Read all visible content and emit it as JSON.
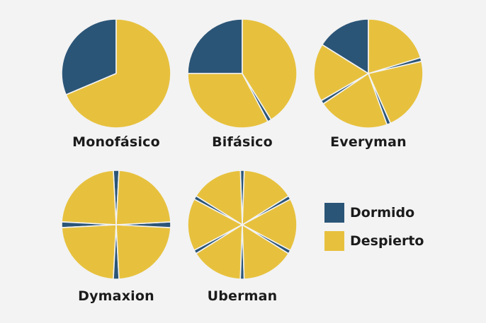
{
  "chart_data": {
    "type": "pie",
    "colors": {
      "asleep": "#2b5577",
      "awake": "#e7c13e",
      "gap": "#f3f3f3"
    },
    "legend": [
      {
        "key": "asleep",
        "label": "Dormido"
      },
      {
        "key": "awake",
        "label": "Despierto"
      }
    ],
    "charts": [
      {
        "title": "Monofásico",
        "segments": [
          {
            "state": "asleep",
            "start_deg": 90,
            "end_deg": 203
          },
          {
            "state": "awake",
            "start_deg": 203,
            "end_deg": 450
          }
        ]
      },
      {
        "title": "Bifásico",
        "segments": [
          {
            "state": "asleep",
            "start_deg": 90,
            "end_deg": 180
          },
          {
            "state": "awake",
            "start_deg": 180,
            "end_deg": 298
          },
          {
            "state": "asleep",
            "start_deg": 298,
            "end_deg": 302
          },
          {
            "state": "awake",
            "start_deg": 302,
            "end_deg": 450
          }
        ]
      },
      {
        "title": "Everyman",
        "segments": [
          {
            "state": "asleep",
            "start_deg": 90,
            "end_deg": 148
          },
          {
            "state": "awake",
            "start_deg": 148,
            "end_deg": 210
          },
          {
            "state": "asleep",
            "start_deg": 210,
            "end_deg": 214
          },
          {
            "state": "awake",
            "start_deg": 214,
            "end_deg": 290
          },
          {
            "state": "asleep",
            "start_deg": 290,
            "end_deg": 294
          },
          {
            "state": "awake",
            "start_deg": 294,
            "end_deg": 13
          },
          {
            "state": "asleep",
            "start_deg": 13,
            "end_deg": 17
          },
          {
            "state": "awake",
            "start_deg": 17,
            "end_deg": 90
          }
        ]
      },
      {
        "title": "Dymaxion",
        "segments": [
          {
            "state": "asleep",
            "start_deg": 87,
            "end_deg": 93
          },
          {
            "state": "awake",
            "start_deg": 93,
            "end_deg": 177
          },
          {
            "state": "asleep",
            "start_deg": 177,
            "end_deg": 183
          },
          {
            "state": "awake",
            "start_deg": 183,
            "end_deg": 267
          },
          {
            "state": "asleep",
            "start_deg": 267,
            "end_deg": 273
          },
          {
            "state": "awake",
            "start_deg": 273,
            "end_deg": 357
          },
          {
            "state": "asleep",
            "start_deg": 357,
            "end_deg": 3
          },
          {
            "state": "awake",
            "start_deg": 3,
            "end_deg": 87
          }
        ]
      },
      {
        "title": "Uberman",
        "segments": [
          {
            "state": "asleep",
            "start_deg": 28,
            "end_deg": 32
          },
          {
            "state": "awake",
            "start_deg": 32,
            "end_deg": 88
          },
          {
            "state": "asleep",
            "start_deg": 88,
            "end_deg": 92
          },
          {
            "state": "awake",
            "start_deg": 92,
            "end_deg": 148
          },
          {
            "state": "asleep",
            "start_deg": 148,
            "end_deg": 152
          },
          {
            "state": "awake",
            "start_deg": 152,
            "end_deg": 208
          },
          {
            "state": "asleep",
            "start_deg": 208,
            "end_deg": 212
          },
          {
            "state": "awake",
            "start_deg": 212,
            "end_deg": 268
          },
          {
            "state": "asleep",
            "start_deg": 268,
            "end_deg": 272
          },
          {
            "state": "awake",
            "start_deg": 272,
            "end_deg": 328
          },
          {
            "state": "asleep",
            "start_deg": 328,
            "end_deg": 332
          },
          {
            "state": "awake",
            "start_deg": 332,
            "end_deg": 28
          }
        ]
      }
    ]
  }
}
